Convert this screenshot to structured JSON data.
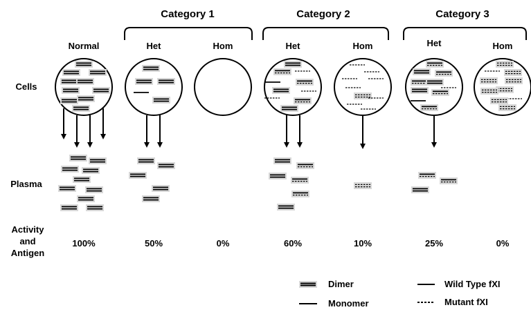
{
  "categories": [
    "Category 1",
    "Category 2",
    "Category 3"
  ],
  "columns": [
    {
      "genotype": "Normal",
      "activity": "100%"
    },
    {
      "genotype": "Het",
      "activity": "50%"
    },
    {
      "genotype": "Hom",
      "activity": "0%"
    },
    {
      "genotype": "Het",
      "activity": "60%"
    },
    {
      "genotype": "Hom",
      "activity": "10%"
    },
    {
      "genotype": "Het",
      "activity": "25%"
    },
    {
      "genotype": "Hom",
      "activity": "0%"
    }
  ],
  "row_labels": {
    "cells": "Cells",
    "plasma": "Plasma",
    "activity_line1": "Activity",
    "activity_line2": "and",
    "activity_line3": "Antigen"
  },
  "legend": {
    "dimer": "Dimer",
    "monomer": "Monomer",
    "wild_type": "Wild Type fXI",
    "mutant": "Mutant fXI"
  }
}
